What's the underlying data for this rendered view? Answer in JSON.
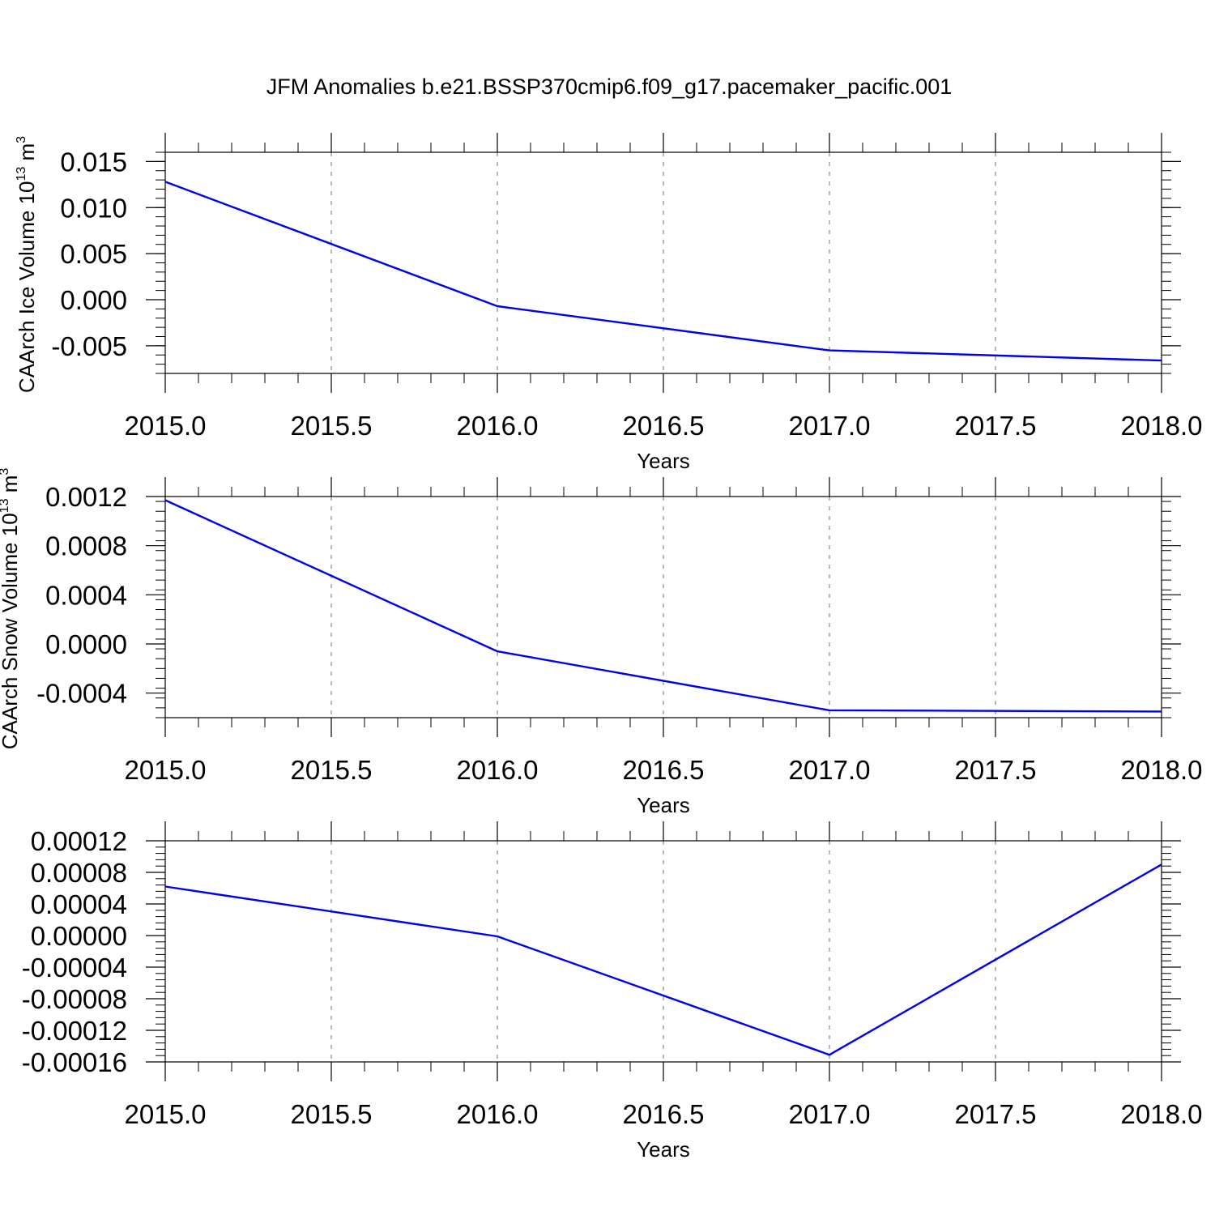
{
  "figure": {
    "title": "JFM Anomalies b.e21.BSSP370cmip6.f09_g17.pacemaker_pacific.001"
  },
  "colors": {
    "line": "#0000ee",
    "axis": "#000000",
    "grid": "#888888"
  },
  "chart_data": [
    {
      "type": "line",
      "ylabel": "CAArch Ice Volume 10",
      "ylabel_exponent": "13",
      "ylabel_unit": "m",
      "ylabel_unit_exponent": "3",
      "xlabel": "Years",
      "xlim": [
        2015.0,
        2018.0
      ],
      "ylim": [
        -0.008,
        0.016
      ],
      "xticks": [
        2015.0,
        2015.5,
        2016.0,
        2016.5,
        2017.0,
        2017.5,
        2018.0
      ],
      "xtick_labels": [
        "2015.0",
        "2015.5",
        "2016.0",
        "2016.5",
        "2017.0",
        "2017.5",
        "2018.0"
      ],
      "yticks": [
        -0.005,
        0.0,
        0.005,
        0.01,
        0.015
      ],
      "ytick_labels": [
        "-0.005",
        "0.000",
        "0.005",
        "0.010",
        "0.015"
      ],
      "grid": "vertical-dashed",
      "series": [
        {
          "x": [
            2015,
            2016,
            2017,
            2018
          ],
          "y": [
            0.0128,
            -0.0007,
            -0.0055,
            -0.0066
          ]
        }
      ]
    },
    {
      "type": "line",
      "ylabel": "CAArch Snow Volume 10",
      "ylabel_exponent": "13",
      "ylabel_unit": "m",
      "ylabel_unit_exponent": "3",
      "xlabel": "Years",
      "xlim": [
        2015.0,
        2018.0
      ],
      "ylim": [
        -0.0006,
        0.0012
      ],
      "xticks": [
        2015.0,
        2015.5,
        2016.0,
        2016.5,
        2017.0,
        2017.5,
        2018.0
      ],
      "xtick_labels": [
        "2015.0",
        "2015.5",
        "2016.0",
        "2016.5",
        "2017.0",
        "2017.5",
        "2018.0"
      ],
      "yticks": [
        -0.0004,
        0.0,
        0.0004,
        0.0008,
        0.0012
      ],
      "ytick_labels": [
        "-0.0004",
        "0.0000",
        "0.0004",
        "0.0008",
        "0.0012"
      ],
      "grid": "vertical-dashed",
      "series": [
        {
          "x": [
            2015,
            2016,
            2017,
            2018
          ],
          "y": [
            0.00117,
            -6e-05,
            -0.00054,
            -0.00055
          ]
        }
      ]
    },
    {
      "type": "line",
      "ylabel": "",
      "xlabel": "Years",
      "xlim": [
        2015.0,
        2018.0
      ],
      "ylim": [
        -0.00016,
        0.00012
      ],
      "xticks": [
        2015.0,
        2015.5,
        2016.0,
        2016.5,
        2017.0,
        2017.5,
        2018.0
      ],
      "xtick_labels": [
        "2015.0",
        "2015.5",
        "2016.0",
        "2016.5",
        "2017.0",
        "2017.5",
        "2018.0"
      ],
      "yticks": [
        -0.00016,
        -0.00012,
        -8e-05,
        -4e-05,
        0.0,
        4e-05,
        8e-05,
        0.00012
      ],
      "ytick_labels": [
        "-0.00016",
        "-0.00012",
        "-0.00008",
        "-0.00004",
        "0.00000",
        "0.00004",
        "0.00008",
        "0.00012"
      ],
      "grid": "vertical-dashed",
      "series": [
        {
          "x": [
            2015,
            2016,
            2017,
            2018
          ],
          "y": [
            6.2e-05,
            -1e-06,
            -0.000151,
            9e-05
          ]
        }
      ]
    }
  ]
}
